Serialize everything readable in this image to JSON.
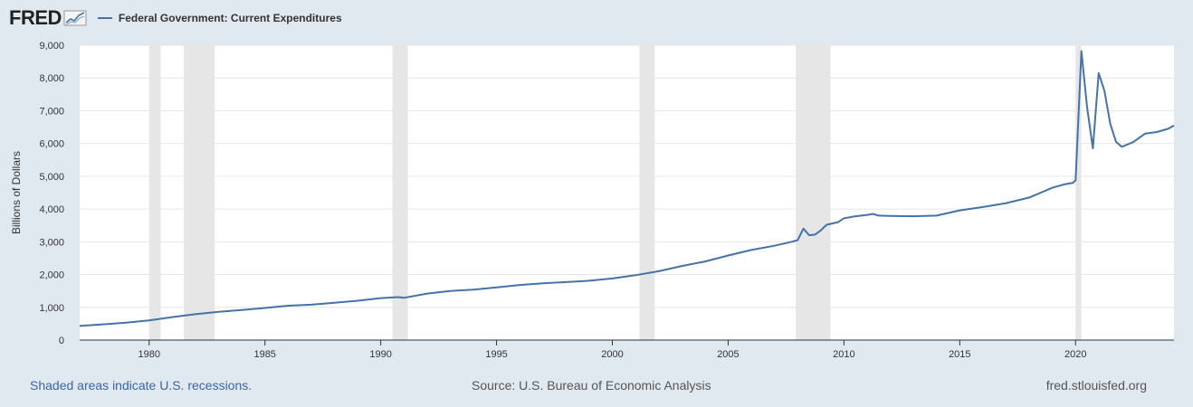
{
  "header": {
    "logo_text": "FRED",
    "logo_icon": "line-chart-icon",
    "legend_label": "Federal Government: Current Expenditures"
  },
  "colors": {
    "background": "#e1e9f0",
    "plot_background": "#ffffff",
    "series": "#4572a7",
    "recession": "#e6e6e6",
    "grid": "#e6e6e6",
    "link": "#3a66a6"
  },
  "footer": {
    "recession_note": "Shaded areas indicate U.S. recessions.",
    "source": "Source: U.S. Bureau of Economic Analysis",
    "site": "fred.stlouisfed.org"
  },
  "chart_data": {
    "type": "line",
    "title": "",
    "xlabel": "",
    "ylabel": "Billions of Dollars",
    "xlim": [
      1977.0,
      2024.25
    ],
    "ylim": [
      0,
      9000
    ],
    "xticks": [
      1980,
      1985,
      1990,
      1995,
      2000,
      2005,
      2010,
      2015,
      2020
    ],
    "yticks": [
      0,
      1000,
      2000,
      3000,
      4000,
      5000,
      6000,
      7000,
      8000,
      9000
    ],
    "ytick_labels": [
      "0",
      "1,000",
      "2,000",
      "3,000",
      "4,000",
      "5,000",
      "6,000",
      "7,000",
      "8,000",
      "9,000"
    ],
    "grid": true,
    "legend_position": "top-left",
    "recessions": [
      [
        1980.0,
        1980.5
      ],
      [
        1981.5,
        1982.83
      ],
      [
        1990.5,
        1991.17
      ],
      [
        2001.17,
        2001.83
      ],
      [
        2007.92,
        2009.42
      ],
      [
        2020.0,
        2020.25
      ]
    ],
    "series": [
      {
        "name": "Federal Government: Current Expenditures",
        "x": [
          1977.0,
          1978.0,
          1979.0,
          1980.0,
          1981.0,
          1982.0,
          1983.0,
          1984.0,
          1985.0,
          1986.0,
          1987.0,
          1988.0,
          1989.0,
          1990.0,
          1990.75,
          1991.0,
          1992.0,
          1993.0,
          1994.0,
          1995.0,
          1996.0,
          1997.0,
          1998.0,
          1999.0,
          2000.0,
          2001.0,
          2002.0,
          2003.0,
          2004.0,
          2005.0,
          2006.0,
          2007.0,
          2007.75,
          2008.0,
          2008.25,
          2008.5,
          2008.75,
          2009.0,
          2009.25,
          2009.75,
          2010.0,
          2010.5,
          2011.0,
          2011.25,
          2011.5,
          2012.0,
          2013.0,
          2013.5,
          2014.0,
          2015.0,
          2016.0,
          2017.0,
          2018.0,
          2019.0,
          2019.5,
          2019.9,
          2020.0,
          2020.25,
          2020.5,
          2020.75,
          2021.0,
          2021.25,
          2021.5,
          2021.75,
          2022.0,
          2022.5,
          2023.0,
          2023.5,
          2024.0,
          2024.25
        ],
        "values": [
          430,
          480,
          530,
          600,
          700,
          790,
          860,
          920,
          980,
          1050,
          1080,
          1140,
          1200,
          1280,
          1310,
          1290,
          1420,
          1500,
          1540,
          1610,
          1680,
          1730,
          1770,
          1810,
          1880,
          1980,
          2100,
          2260,
          2400,
          2580,
          2750,
          2880,
          3000,
          3050,
          3400,
          3200,
          3220,
          3350,
          3520,
          3600,
          3720,
          3780,
          3820,
          3850,
          3800,
          3790,
          3780,
          3790,
          3800,
          3960,
          4060,
          4180,
          4350,
          4650,
          4750,
          4800,
          4880,
          8820,
          7100,
          5850,
          8150,
          7600,
          6600,
          6050,
          5900,
          6050,
          6300,
          6350,
          6450,
          6550
        ]
      }
    ]
  }
}
